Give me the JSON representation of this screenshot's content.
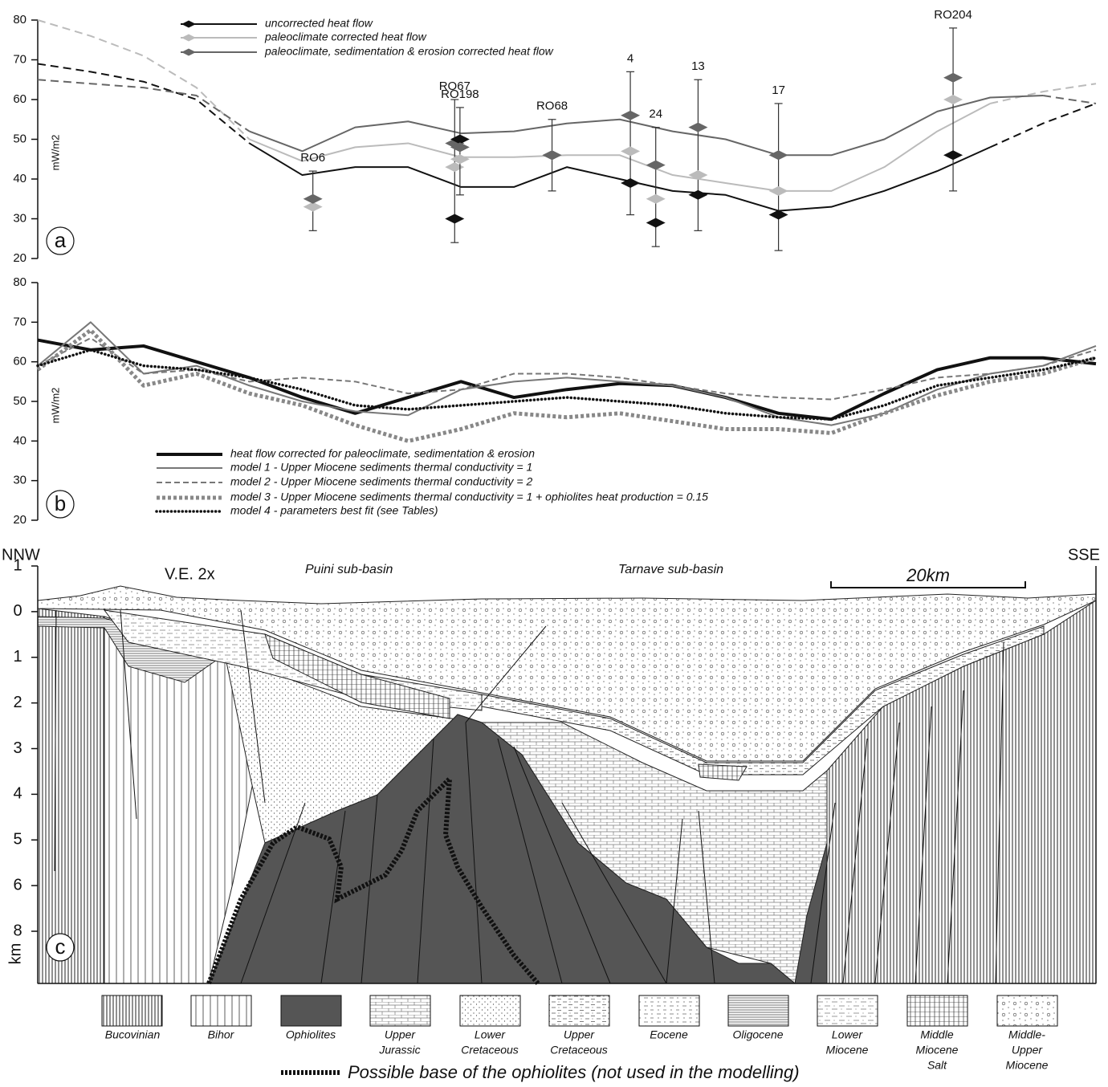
{
  "chart_data": [
    {
      "type": "line",
      "panel_label": "a",
      "y_label": "mW/m2",
      "x": [
        0,
        5,
        10,
        15,
        20,
        25,
        30,
        35,
        40,
        45,
        50,
        55,
        60,
        65,
        70,
        75,
        80,
        85,
        90,
        95,
        100
      ],
      "xlim": [
        0,
        100
      ],
      "ylim": [
        20,
        80
      ],
      "yticks": [
        20,
        30,
        40,
        50,
        60,
        70,
        80
      ],
      "series": [
        {
          "name": "uncorrected heat flow",
          "color": "#111111",
          "line_style": "solid",
          "solid_x": [
            20,
            90
          ],
          "values": [
            69,
            67,
            64.5,
            60,
            49,
            41,
            43,
            43,
            38,
            38,
            43,
            40,
            37,
            36,
            32,
            33,
            37,
            42,
            48,
            54,
            59
          ],
          "well_values": [
            null,
            30,
            50,
            46,
            39,
            29,
            36,
            31,
            46
          ]
        },
        {
          "name": "paleoclimate corrected heat flow",
          "color": "#bbbbbb",
          "line_style": "solid",
          "solid_x": [
            20,
            90
          ],
          "values": [
            80,
            76,
            71,
            63,
            50,
            44.5,
            48,
            49,
            45.5,
            45.5,
            46,
            46,
            41,
            39,
            37,
            37,
            43,
            52,
            59,
            62,
            64
          ],
          "well_values": [
            33,
            43,
            45,
            46,
            47,
            35,
            41,
            37,
            60
          ]
        },
        {
          "name": "paleoclimate, sedimentation & erosion corrected heat flow",
          "color": "#666666",
          "line_style": "solid",
          "solid_x": [
            20,
            95
          ],
          "values": [
            65,
            64,
            63,
            61,
            52,
            47,
            53,
            54.5,
            51.5,
            52,
            54,
            55,
            52,
            50,
            46,
            46,
            50,
            57,
            60.5,
            61,
            59
          ],
          "well_values": [
            35,
            49,
            48,
            46,
            56,
            43.5,
            53,
            46,
            65.5
          ]
        }
      ],
      "wells": {
        "labels": [
          "RO6",
          "RO67",
          "RO198",
          "RO68",
          "4",
          "24",
          "13",
          "17",
          "RO204"
        ],
        "x": [
          26,
          39.4,
          39.9,
          48.6,
          56,
          58.4,
          62.4,
          70,
          86.5
        ],
        "low": [
          27,
          24,
          36,
          37,
          31,
          23,
          27,
          22,
          37
        ],
        "high": [
          42,
          60,
          58,
          55,
          67,
          53,
          65,
          59,
          78
        ]
      }
    },
    {
      "type": "line",
      "panel_label": "b",
      "y_label": "mW/m2",
      "x": [
        0,
        5,
        10,
        15,
        20,
        25,
        30,
        35,
        40,
        45,
        50,
        55,
        60,
        65,
        70,
        75,
        80,
        85,
        90,
        95,
        100
      ],
      "xlim": [
        0,
        100
      ],
      "ylim": [
        20,
        80
      ],
      "yticks": [
        20,
        30,
        40,
        50,
        60,
        70,
        80
      ],
      "series": [
        {
          "name": "heat flow corrected for paleoclimate, sedimentation & erosion",
          "color": "#111111",
          "line_style": "thick",
          "values": [
            65.5,
            63,
            64,
            60,
            56,
            51,
            47,
            51,
            55,
            51,
            53,
            54.5,
            54,
            51,
            47,
            45.5,
            52,
            58,
            61,
            61,
            59.5
          ]
        },
        {
          "name": "model 1 - Upper Miocene sediments thermal conductivity = 1",
          "color": "#777777",
          "line_style": "solid",
          "values": [
            59,
            70,
            57,
            59,
            54,
            50,
            47.5,
            46.5,
            53,
            55,
            56,
            55,
            54,
            51,
            46,
            44,
            47,
            53,
            57,
            59,
            64
          ]
        },
        {
          "name": "model 2 - Upper Miocene sediments thermal conductivity = 2",
          "color": "#777777",
          "line_style": "dashed",
          "values": [
            59,
            66,
            57,
            58,
            55,
            56,
            55,
            52,
            53,
            57,
            57,
            56,
            54,
            52,
            51,
            50.5,
            53,
            56,
            57,
            59,
            63
          ]
        },
        {
          "name": "model 3 - Upper Miocene sediments thermal conductivity = 1 + ophiolites heat production = 0.15",
          "color": "#888888",
          "line_style": "thick-dotted",
          "values": [
            58,
            68,
            54,
            57,
            52,
            49,
            44,
            40,
            43,
            47,
            46,
            47,
            45,
            43,
            43,
            42,
            47,
            51.5,
            55,
            57,
            61
          ]
        },
        {
          "name": "model 4 - parameters best fit (see Tables)",
          "color": "#111111",
          "line_style": "dotted",
          "values": [
            59,
            63,
            59,
            58,
            56,
            53,
            49,
            48,
            49,
            50,
            51,
            50,
            49,
            47,
            46,
            45.5,
            49,
            54,
            56,
            58,
            61
          ]
        }
      ]
    }
  ],
  "cross_section": {
    "panel_label": "c",
    "left_end": "NNW",
    "right_end": "SSE",
    "vertical_exaggeration": "V.E. 2x",
    "basins": [
      "Puini sub-basin",
      "Tarnave sub-basin"
    ],
    "scale_bar": "20km",
    "depth_ticks": [
      1,
      0,
      1,
      2,
      3,
      4,
      5,
      6,
      8
    ],
    "depth_unit": "km",
    "legend": [
      [
        "Bucovinian"
      ],
      [
        "Bihor"
      ],
      [
        "Ophiolites"
      ],
      [
        "Upper",
        "Jurassic"
      ],
      [
        "Lower",
        "Cretaceous"
      ],
      [
        "Upper",
        "Cretaceous"
      ],
      [
        "Eocene"
      ],
      [
        "Oligocene"
      ],
      [
        "Lower",
        "Miocene"
      ],
      [
        "Middle",
        "Miocene",
        "Salt"
      ],
      [
        "Middle-",
        "Upper",
        "Miocene"
      ]
    ],
    "footnote": "Possible base of the ophiolites (not used in the modelling)"
  }
}
